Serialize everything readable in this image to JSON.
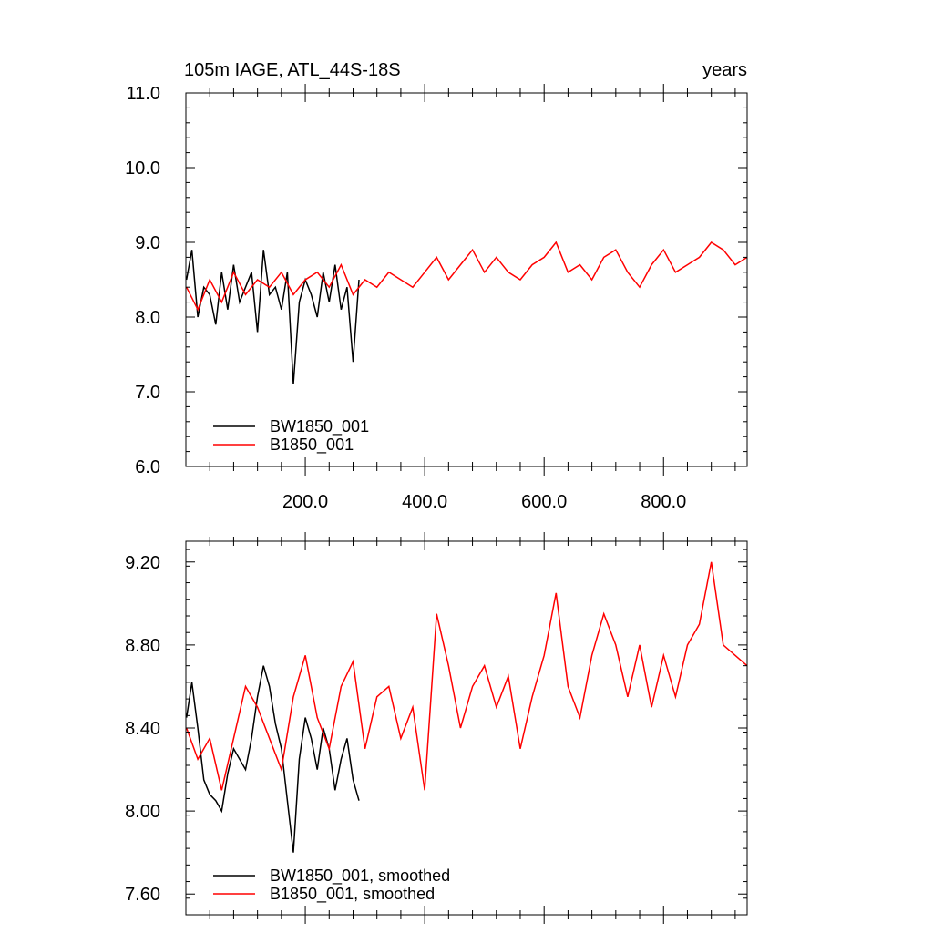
{
  "chart_data": [
    {
      "type": "line",
      "title_left": "105m IAGE, ATL_44S-18S",
      "title_right": "years",
      "xlim": [
        0,
        940
      ],
      "ylim": [
        6.0,
        11.0
      ],
      "xticks": [
        "200.0",
        "400.0",
        "600.0",
        "800.0"
      ],
      "yticks": [
        "6.0",
        "7.0",
        "8.0",
        "9.0",
        "10.0",
        "11.0"
      ],
      "legend_position": "bottom-left",
      "series": [
        {
          "name": "BW1850_001",
          "color": "#000000",
          "x": [
            1,
            10,
            20,
            30,
            40,
            50,
            60,
            70,
            80,
            90,
            100,
            110,
            120,
            130,
            140,
            150,
            160,
            170,
            180,
            190,
            200,
            210,
            220,
            230,
            240,
            250,
            260,
            270,
            280,
            290
          ],
          "values": [
            8.5,
            8.9,
            8.0,
            8.4,
            8.3,
            7.9,
            8.6,
            8.1,
            8.7,
            8.2,
            8.4,
            8.6,
            7.8,
            8.9,
            8.3,
            8.4,
            8.1,
            8.6,
            7.1,
            8.2,
            8.5,
            8.3,
            8.0,
            8.6,
            8.2,
            8.7,
            8.1,
            8.4,
            7.4,
            8.5
          ]
        },
        {
          "name": "B1850_001",
          "color": "#ff0000",
          "x": [
            1,
            20,
            40,
            60,
            80,
            100,
            120,
            140,
            160,
            180,
            200,
            220,
            240,
            260,
            280,
            300,
            320,
            340,
            360,
            380,
            400,
            420,
            440,
            460,
            480,
            500,
            520,
            540,
            560,
            580,
            600,
            620,
            640,
            660,
            680,
            700,
            720,
            740,
            760,
            780,
            800,
            820,
            840,
            860,
            880,
            900,
            920,
            940
          ],
          "values": [
            8.4,
            8.1,
            8.5,
            8.2,
            8.6,
            8.3,
            8.5,
            8.4,
            8.6,
            8.3,
            8.5,
            8.6,
            8.4,
            8.7,
            8.3,
            8.5,
            8.4,
            8.6,
            8.5,
            8.4,
            8.6,
            8.8,
            8.5,
            8.7,
            8.9,
            8.6,
            8.8,
            8.6,
            8.5,
            8.7,
            8.8,
            9.0,
            8.6,
            8.7,
            8.5,
            8.8,
            8.9,
            8.6,
            8.4,
            8.7,
            8.9,
            8.6,
            8.7,
            8.8,
            9.0,
            8.9,
            8.7,
            8.8
          ]
        }
      ]
    },
    {
      "type": "line",
      "xlim": [
        0,
        940
      ],
      "ylim": [
        7.5,
        9.3
      ],
      "yticks": [
        "7.60",
        "8.00",
        "8.40",
        "8.80",
        "9.20"
      ],
      "legend_position": "bottom-left",
      "series": [
        {
          "name": "BW1850_001, smoothed",
          "color": "#000000",
          "x": [
            1,
            10,
            20,
            30,
            40,
            50,
            60,
            70,
            80,
            90,
            100,
            110,
            120,
            130,
            140,
            150,
            160,
            170,
            180,
            190,
            200,
            210,
            220,
            230,
            240,
            250,
            260,
            270,
            280,
            290
          ],
          "values": [
            8.45,
            8.62,
            8.4,
            8.15,
            8.08,
            8.05,
            8.0,
            8.18,
            8.3,
            8.25,
            8.2,
            8.35,
            8.55,
            8.7,
            8.6,
            8.42,
            8.3,
            8.05,
            7.8,
            8.25,
            8.45,
            8.35,
            8.2,
            8.4,
            8.3,
            8.1,
            8.25,
            8.35,
            8.15,
            8.05
          ]
        },
        {
          "name": "B1850_001, smoothed",
          "color": "#ff0000",
          "x": [
            1,
            20,
            40,
            60,
            80,
            100,
            120,
            140,
            160,
            180,
            200,
            220,
            240,
            260,
            280,
            300,
            320,
            340,
            360,
            380,
            400,
            420,
            440,
            460,
            480,
            500,
            520,
            540,
            560,
            580,
            600,
            620,
            640,
            660,
            680,
            700,
            720,
            740,
            760,
            780,
            800,
            820,
            840,
            860,
            880,
            900,
            920,
            940
          ],
          "values": [
            8.4,
            8.25,
            8.35,
            8.1,
            8.35,
            8.6,
            8.5,
            8.35,
            8.2,
            8.55,
            8.75,
            8.45,
            8.3,
            8.6,
            8.72,
            8.3,
            8.55,
            8.6,
            8.35,
            8.5,
            8.1,
            8.95,
            8.7,
            8.4,
            8.6,
            8.7,
            8.5,
            8.65,
            8.3,
            8.55,
            8.75,
            9.05,
            8.6,
            8.45,
            8.75,
            8.95,
            8.8,
            8.55,
            8.8,
            8.5,
            8.75,
            8.55,
            8.8,
            8.9,
            9.2,
            8.8,
            8.75,
            8.7
          ]
        }
      ]
    }
  ]
}
